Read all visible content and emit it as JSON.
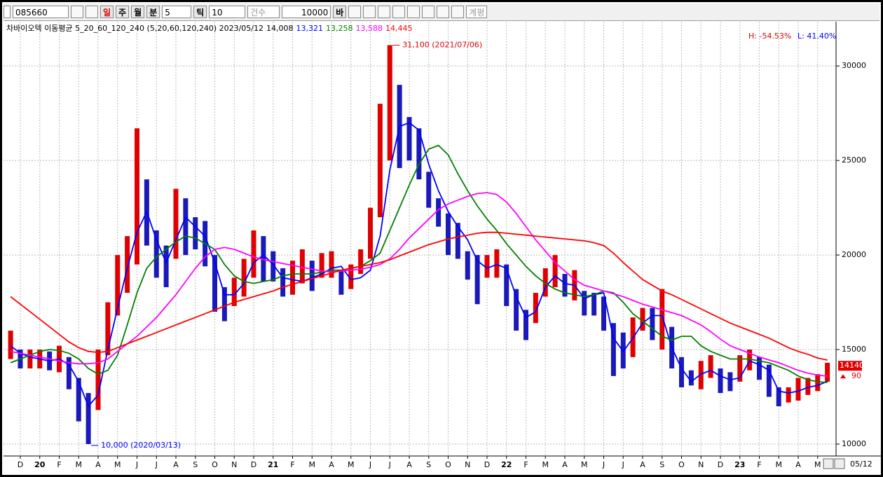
{
  "toolbar": {
    "code": "085660",
    "period_buttons": [
      "일",
      "주",
      "월",
      "분"
    ],
    "minute": "5",
    "tick_button": "틱",
    "tick": "10",
    "count_mode": "건수",
    "count": "10000",
    "count_unit": "바",
    "extra_button": "계평"
  },
  "chart_data": {
    "type": "candlestick",
    "info": {
      "prefix": "차바이오텍 이동평균 5_20_60_120_240 (5,20,60,120,240) 2023/05/12",
      "items": [
        {
          "label": "14,008",
          "color": "#000000"
        },
        {
          "label": "13,321",
          "color": "#0000ff"
        },
        {
          "label": "13,258",
          "color": "#008000"
        },
        {
          "label": "13,588",
          "color": "#ff00ff"
        },
        {
          "label": "14,445",
          "color": "#ff0000"
        }
      ]
    },
    "high_low": {
      "high": "H: -54.53%",
      "low": "L: 41.40%"
    },
    "annotations": [
      {
        "text": "31,100 (2021/07/06)",
        "color": "#e00000"
      },
      {
        "text": "10,000 (2020/03/13)",
        "color": "#0000ff"
      }
    ],
    "last_price": 14140,
    "last_change": 90,
    "last_date": "05/12",
    "categories": [
      null,
      "D",
      null,
      "20",
      null,
      "F",
      null,
      "M",
      null,
      "A",
      null,
      "M",
      null,
      "J",
      null,
      "J",
      null,
      "A",
      null,
      "S",
      null,
      "O",
      null,
      "N",
      null,
      "D",
      null,
      "21",
      null,
      "F",
      null,
      "M",
      null,
      "A",
      null,
      "M",
      null,
      "J",
      null,
      "J",
      null,
      "A",
      null,
      "S",
      null,
      "O",
      null,
      "N",
      null,
      "D",
      null,
      "22",
      null,
      "F",
      null,
      "M",
      null,
      "A",
      null,
      "M",
      null,
      "J",
      null,
      "J",
      null,
      "A",
      null,
      "S",
      null,
      "O",
      null,
      "N",
      null,
      "D",
      null,
      "23",
      null,
      "F",
      null,
      "M",
      null,
      "A",
      null,
      "M",
      null
    ],
    "candles": {
      "up_color": "#e00000",
      "down_color": "#1a1ab8",
      "high": [
        16000,
        15000,
        15000,
        15000,
        14900,
        15200,
        14600,
        13500,
        12700,
        15000,
        17500,
        20000,
        21000,
        26700,
        24000,
        21300,
        20500,
        23500,
        23000,
        22000,
        21800,
        20000,
        18300,
        18800,
        19800,
        21300,
        21000,
        20200,
        19300,
        19700,
        20300,
        19700,
        20100,
        20200,
        19200,
        19500,
        20300,
        22500,
        28000,
        31100,
        29000,
        27300,
        26700,
        24400,
        23000,
        22200,
        21700,
        20200,
        20000,
        20000,
        20300,
        19500,
        18200,
        17100,
        18000,
        19300,
        20000,
        19000,
        19200,
        18100,
        18000,
        17800,
        16400,
        15900,
        16700,
        17200,
        17200,
        18200,
        16200,
        14600,
        13900,
        14400,
        14700,
        14000,
        13800,
        14700,
        15000,
        14600,
        14200,
        13000,
        13000,
        13500,
        13500,
        13700,
        14300
      ],
      "low": [
        14500,
        14000,
        14000,
        14000,
        13900,
        13800,
        12900,
        11200,
        10000,
        11800,
        14700,
        16800,
        18000,
        19500,
        20500,
        18800,
        18300,
        19800,
        20000,
        20300,
        19400,
        17000,
        16500,
        17300,
        17800,
        18800,
        18600,
        18600,
        17800,
        17900,
        18500,
        18100,
        18800,
        18800,
        17900,
        18200,
        19000,
        19800,
        22000,
        25000,
        24600,
        25000,
        24000,
        22500,
        21500,
        20000,
        19800,
        18700,
        17400,
        18800,
        18800,
        17300,
        16000,
        15500,
        16400,
        17800,
        18300,
        17800,
        17600,
        16800,
        16800,
        16000,
        13600,
        14000,
        14600,
        16000,
        15500,
        15000,
        14000,
        13000,
        13100,
        12900,
        13500,
        12700,
        12800,
        13300,
        13900,
        13400,
        12500,
        12000,
        12200,
        12300,
        12600,
        12800,
        13300
      ]
    },
    "series": [
      {
        "name": "20",
        "color": "#0000ff",
        "values": [
          15200,
          14800,
          14600,
          14500,
          14400,
          14500,
          14200,
          13300,
          12000,
          12600,
          15000,
          17200,
          19300,
          21200,
          22300,
          20800,
          19600,
          20800,
          22000,
          21500,
          21000,
          19600,
          17900,
          17900,
          18500,
          19600,
          20000,
          19500,
          18800,
          18700,
          18600,
          18800,
          19000,
          19300,
          19400,
          18700,
          18800,
          19200,
          21000,
          24500,
          26800,
          27000,
          26600,
          24800,
          23400,
          22300,
          21500,
          20800,
          19700,
          19300,
          19500,
          19300,
          17800,
          16700,
          17000,
          18300,
          18900,
          18500,
          18400,
          17700,
          17900,
          18000,
          15600,
          14900,
          15600,
          16400,
          16800,
          16800,
          15100,
          14000,
          13300,
          13700,
          13900,
          13600,
          13400,
          13500,
          14400,
          14200,
          13900,
          12800,
          12700,
          12800,
          13000,
          13100,
          13321
        ]
      },
      {
        "name": "60",
        "color": "#008000",
        "values": [
          14300,
          14500,
          14700,
          14900,
          15000,
          14950,
          14800,
          14500,
          14000,
          13700,
          13900,
          14700,
          16300,
          18000,
          19300,
          19900,
          20300,
          20700,
          21000,
          20900,
          20600,
          20300,
          19500,
          18900,
          18600,
          18500,
          18600,
          18700,
          18900,
          19000,
          19000,
          19000,
          19100,
          19200,
          19200,
          19300,
          19400,
          19700,
          20100,
          21300,
          22500,
          23700,
          24800,
          25600,
          25800,
          25300,
          24300,
          23400,
          22600,
          21900,
          21300,
          20600,
          20000,
          19400,
          18900,
          18500,
          18200,
          18000,
          17900,
          17800,
          17900,
          18100,
          18000,
          17500,
          16900,
          16500,
          16100,
          15700,
          15500,
          15700,
          15700,
          15200,
          14900,
          14700,
          14500,
          14500,
          14500,
          14400,
          14300,
          14100,
          13900,
          13600,
          13400,
          13300,
          13258
        ]
      },
      {
        "name": "120",
        "color": "#ff00ff",
        "values": [
          14900,
          14800,
          14700,
          14600,
          14500,
          14400,
          14300,
          14250,
          14250,
          14300,
          14500,
          14900,
          15300,
          15700,
          16200,
          16700,
          17300,
          17900,
          18600,
          19300,
          19900,
          20300,
          20400,
          20300,
          20100,
          19900,
          19750,
          19650,
          19550,
          19450,
          19350,
          19250,
          19150,
          19100,
          19150,
          19200,
          19250,
          19350,
          19500,
          19800,
          20300,
          20900,
          21400,
          21900,
          22400,
          22700,
          22900,
          23100,
          23250,
          23300,
          23200,
          22800,
          22200,
          21500,
          20800,
          20200,
          19600,
          19150,
          18700,
          18400,
          18250,
          18100,
          17950,
          17800,
          17600,
          17400,
          17250,
          17100,
          16950,
          16800,
          16550,
          16300,
          15950,
          15550,
          15200,
          15000,
          14800,
          14600,
          14450,
          14300,
          14100,
          13900,
          13750,
          13650,
          13588
        ]
      },
      {
        "name": "240",
        "color": "#ff0000",
        "values": [
          17800,
          17400,
          17000,
          16600,
          16200,
          15800,
          15400,
          15100,
          14900,
          14850,
          14900,
          15100,
          15300,
          15500,
          15700,
          15900,
          16100,
          16300,
          16500,
          16700,
          16900,
          17100,
          17300,
          17500,
          17650,
          17800,
          17950,
          18100,
          18300,
          18450,
          18600,
          18750,
          18900,
          19050,
          19200,
          19300,
          19400,
          19500,
          19600,
          19750,
          19950,
          20150,
          20350,
          20550,
          20700,
          20850,
          20950,
          21050,
          21150,
          21200,
          21200,
          21150,
          21100,
          21050,
          21000,
          20950,
          20900,
          20850,
          20800,
          20750,
          20650,
          20500,
          20100,
          19600,
          19150,
          18700,
          18400,
          18100,
          17900,
          17650,
          17400,
          17150,
          16900,
          16650,
          16400,
          16200,
          16000,
          15800,
          15600,
          15350,
          15100,
          14900,
          14750,
          14550,
          14445
        ]
      }
    ],
    "ylim": [
      9370,
      32340
    ],
    "yticks": [
      10000,
      15000,
      20000,
      25000,
      30000
    ],
    "grid": true
  }
}
